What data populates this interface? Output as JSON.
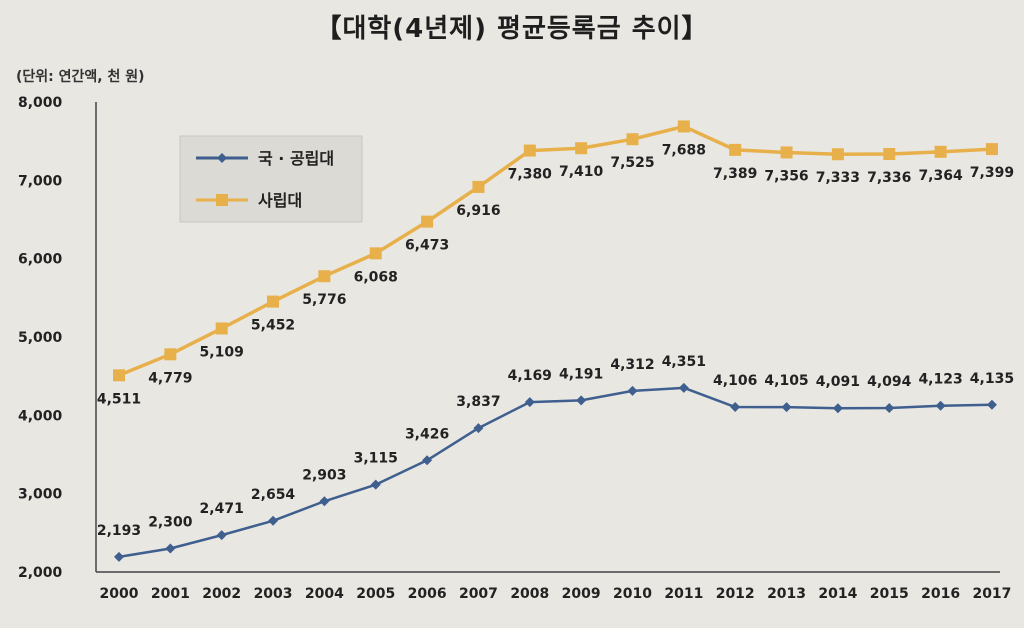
{
  "title": "【대학(4년제) 평균등록금 추이】",
  "unit_label": "(단위: 연간액, 천 원)",
  "colors": {
    "public": "#3f5f8f",
    "private": "#e8b04a"
  },
  "chart_data": {
    "type": "line",
    "title": "【대학(4년제) 평균등록금 추이】",
    "xlabel": "",
    "ylabel": "(단위: 연간액, 천 원)",
    "categories": [
      "2000",
      "2001",
      "2002",
      "2003",
      "2004",
      "2005",
      "2006",
      "2007",
      "2008",
      "2009",
      "2010",
      "2011",
      "2012",
      "2013",
      "2014",
      "2015",
      "2016",
      "2017"
    ],
    "ylim": [
      2000,
      8000
    ],
    "yticks": [
      2000,
      3000,
      4000,
      5000,
      6000,
      7000,
      8000
    ],
    "ytick_labels": [
      "2,000",
      "3,000",
      "4,000",
      "5,000",
      "6,000",
      "7,000",
      "8,000"
    ],
    "legend_position": "top-left",
    "series": [
      {
        "name": "국 · 공립대",
        "marker": "diamond",
        "values": [
          2193,
          2300,
          2471,
          2654,
          2903,
          3115,
          3426,
          3837,
          4169,
          4191,
          4312,
          4351,
          4106,
          4105,
          4091,
          4094,
          4123,
          4135
        ],
        "labels": [
          "2,193",
          "2,300",
          "2,471",
          "2,654",
          "2,903",
          "3,115",
          "3,426",
          "3,837",
          "4,169",
          "4,191",
          "4,312",
          "4,351",
          "4,106",
          "4,105",
          "4,091",
          "4,094",
          "4,123",
          "4,135"
        ]
      },
      {
        "name": "사립대",
        "marker": "square",
        "values": [
          4511,
          4779,
          5109,
          5452,
          5776,
          6068,
          6473,
          6916,
          7380,
          7410,
          7525,
          7688,
          7389,
          7356,
          7333,
          7336,
          7364,
          7399
        ],
        "labels": [
          "4,511",
          "4,779",
          "5,109",
          "5,452",
          "5,776",
          "6,068",
          "6,473",
          "6,916",
          "7,380",
          "7,410",
          "7,525",
          "7,688",
          "7,389",
          "7,356",
          "7,333",
          "7,336",
          "7,364",
          "7,399"
        ]
      }
    ]
  }
}
